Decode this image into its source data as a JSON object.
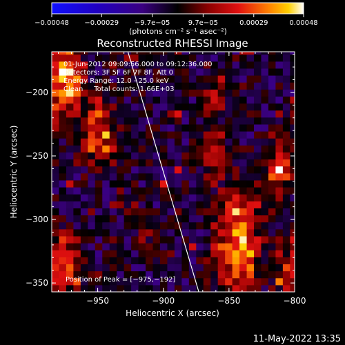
{
  "chart_data": {
    "type": "heatmap",
    "title": "Reconstructed RHESSI Image",
    "xlabel": "Heliocentric X (arcsec)",
    "ylabel": "Heliocentric Y (arcsec)",
    "xlim": [
      -985,
      -800
    ],
    "ylim": [
      -357,
      -168
    ],
    "x_ticks": [
      -950,
      -900,
      -850,
      -800
    ],
    "y_ticks": [
      -200,
      -250,
      -300,
      -350
    ],
    "x_tick_labels": [
      "−950",
      "−900",
      "−850",
      "−800"
    ],
    "y_tick_labels": [
      "−200",
      "−250",
      "−300",
      "−350"
    ],
    "colorbar": {
      "range": [
        -0.00048,
        0.00048
      ],
      "ticks": [
        -0.00048,
        -0.00029,
        -9.7e-05,
        9.7e-05,
        0.00029,
        0.00048
      ],
      "tick_labels": [
        "−0.00048",
        "−0.00029",
        "−9.7e−05",
        "9.7e−05",
        "0.00029",
        "0.00048"
      ],
      "unit_label": "(photons cm⁻² s⁻¹ asec⁻²)"
    },
    "annotations": [
      "01-Jun-2012 09:09:56.000 to 09:12:36.000",
      "Detectors: 3F 5F 6F 7F 8F, Att 0",
      "Energy Range: 12.0 - 25.0 keV",
      "Clean     Total counts: 1.66E+03"
    ],
    "peak_label": "Position of Peak = [−975,−192]",
    "peak": [
      -975,
      -192
    ],
    "limb_line": [
      [
        -927,
        -168
      ],
      [
        -873,
        -357
      ]
    ],
    "hot_regions": [
      {
        "x": -975,
        "y": -190,
        "sx": 9,
        "sy": 22,
        "amp": 0.00046
      },
      {
        "x": -950,
        "y": -232,
        "sx": 8,
        "sy": 16,
        "amp": 0.00036
      },
      {
        "x": -843,
        "y": -318,
        "sx": 11,
        "sy": 26,
        "amp": 0.00045
      },
      {
        "x": -862,
        "y": -250,
        "sx": 6,
        "sy": 12,
        "amp": 0.00028
      },
      {
        "x": -812,
        "y": -262,
        "sx": 7,
        "sy": 16,
        "amp": 0.00033
      },
      {
        "x": -862,
        "y": -205,
        "sx": 6,
        "sy": 8,
        "amp": 0.0002
      },
      {
        "x": -975,
        "y": -335,
        "sx": 8,
        "sy": 16,
        "amp": 0.0003
      },
      {
        "x": -805,
        "y": -340,
        "sx": 7,
        "sy": 16,
        "amp": 0.00022
      }
    ]
  },
  "footer": {
    "timestamp": "11-May-2022 13:35"
  }
}
